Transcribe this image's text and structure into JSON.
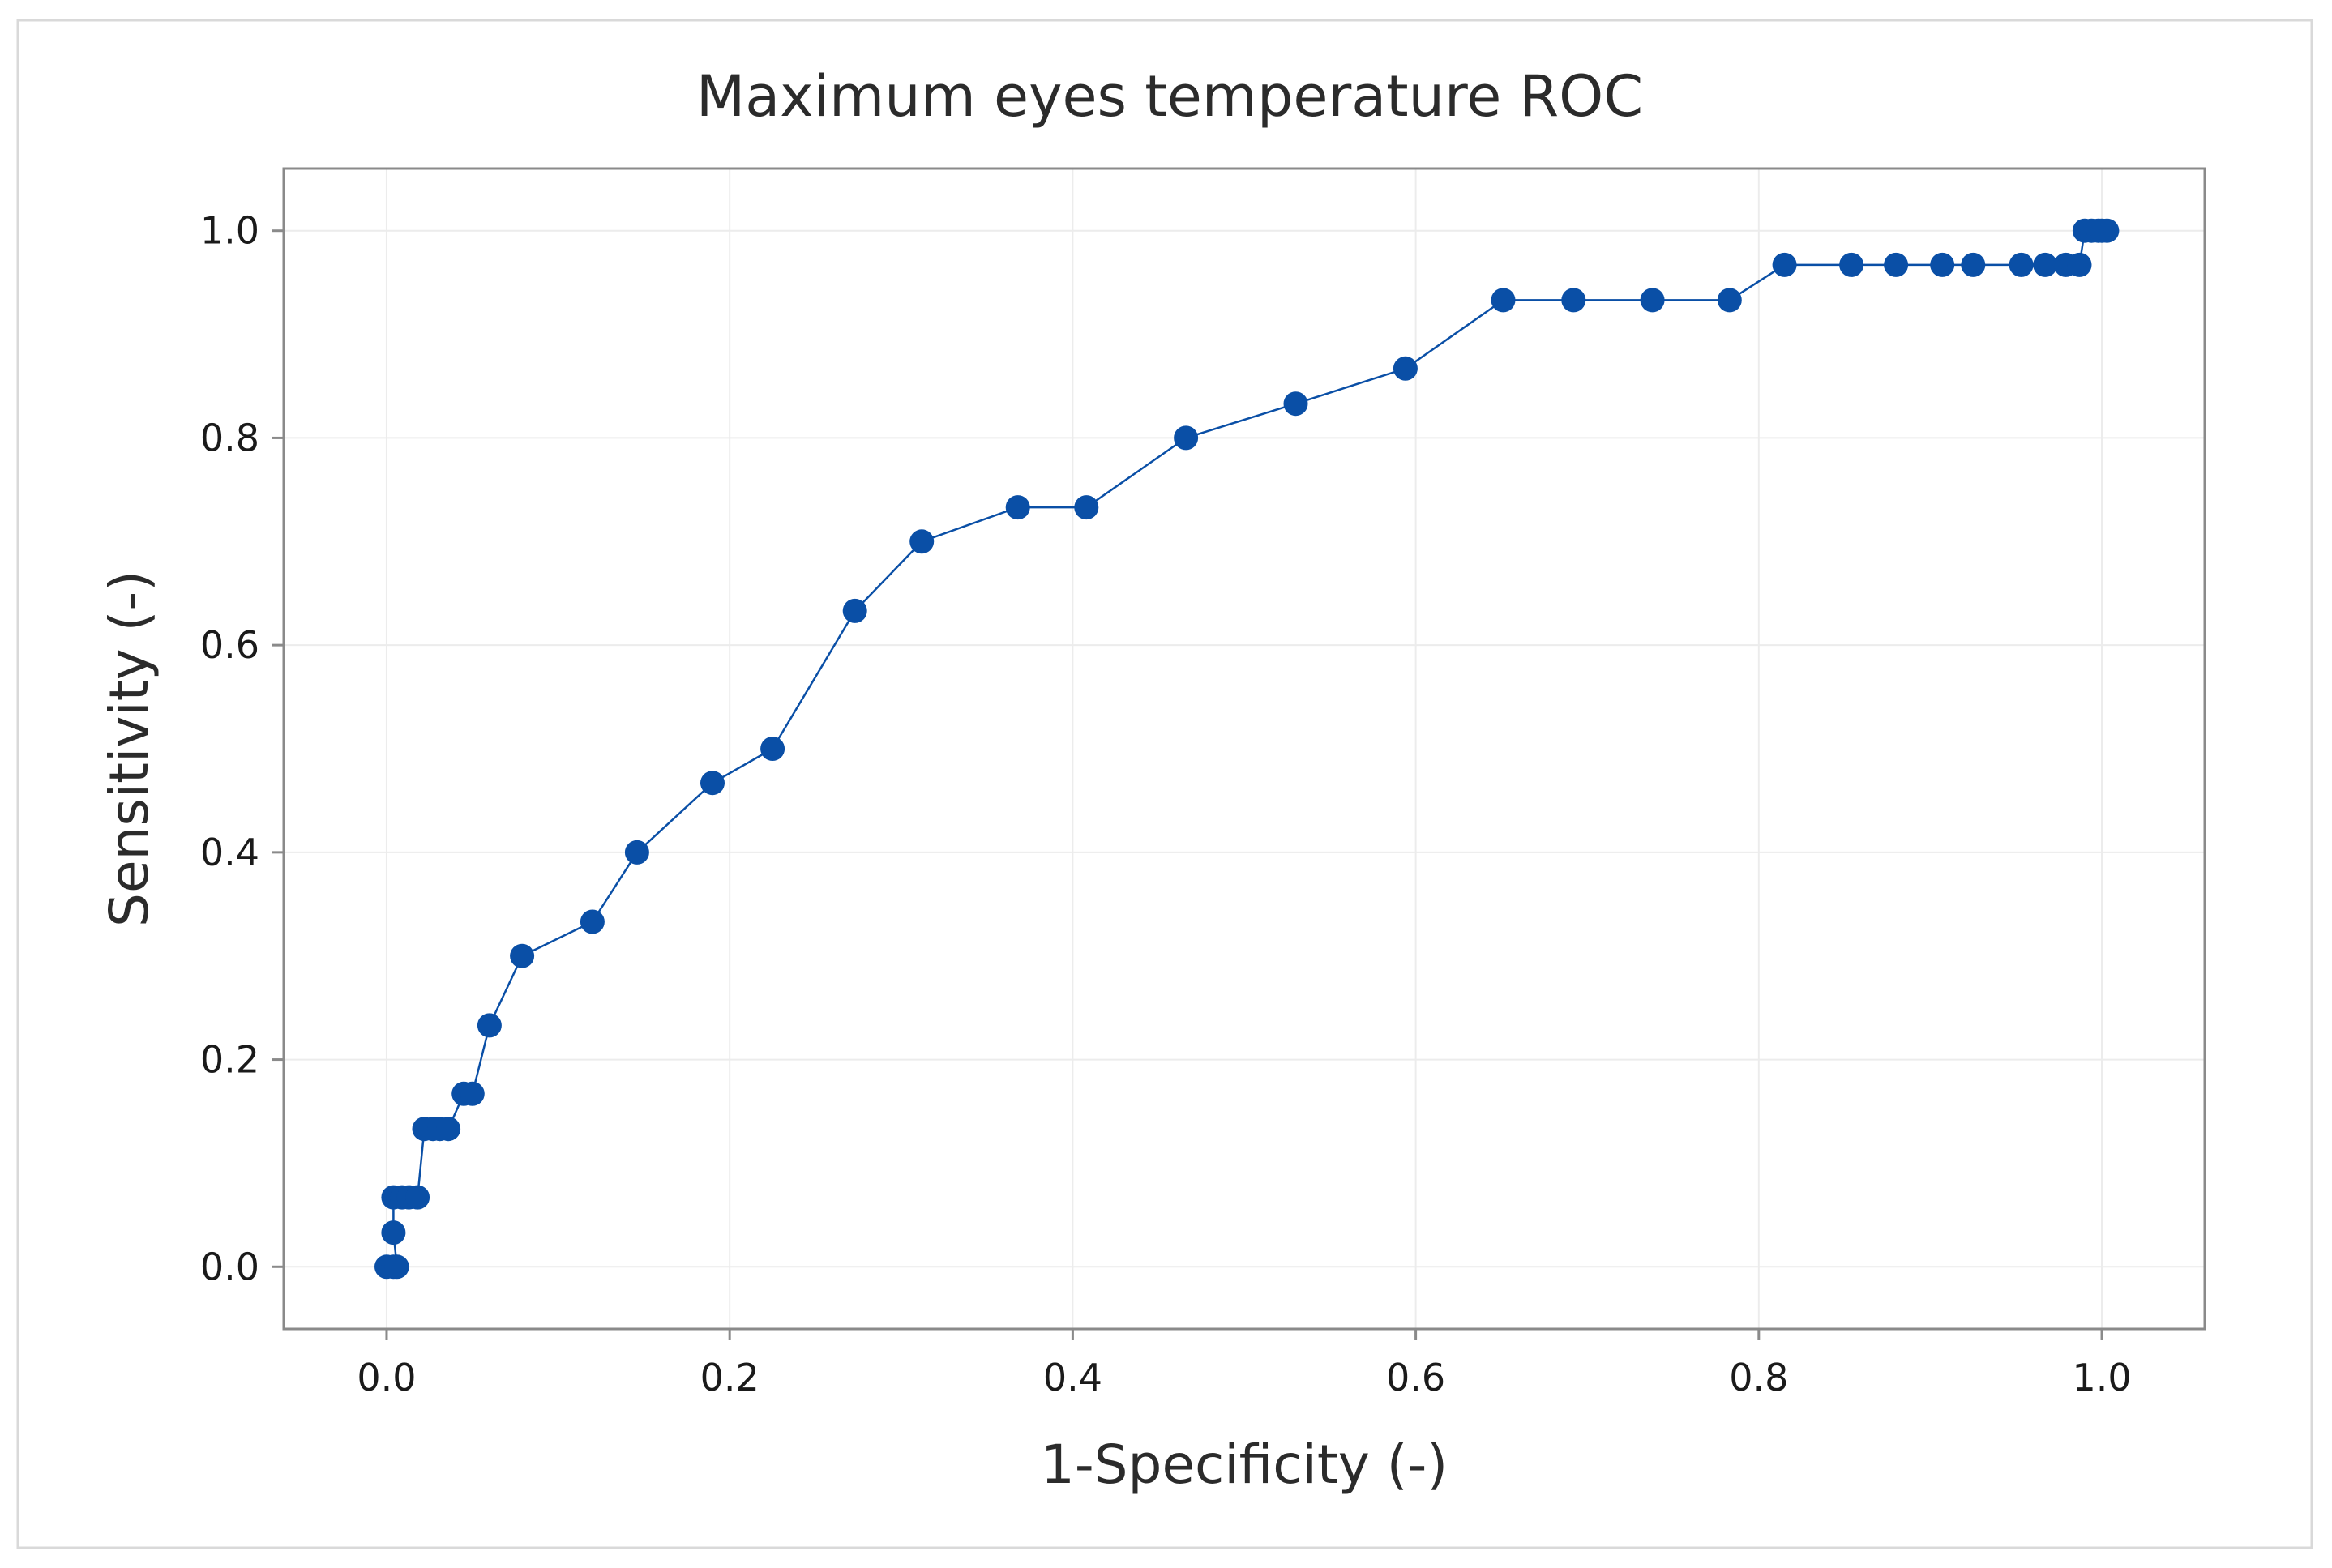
{
  "chart_data": {
    "type": "line",
    "title": "Maximum eyes temperature ROC",
    "xlabel": "1-Specificity (-)",
    "ylabel": "Sensitivity (-)",
    "xlim": [
      -0.06,
      1.06
    ],
    "ylim": [
      -0.06,
      1.06
    ],
    "x_ticks": [
      0.0,
      0.2,
      0.4,
      0.6,
      0.8,
      1.0
    ],
    "x_tick_labels": [
      "0.0",
      "0.2",
      "0.4",
      "0.6",
      "0.8",
      "1.0"
    ],
    "y_ticks": [
      0.0,
      0.2,
      0.4,
      0.6,
      0.8,
      1.0
    ],
    "y_tick_labels": [
      "0.0",
      "0.2",
      "0.4",
      "0.6",
      "0.8",
      "1.0"
    ],
    "grid": true,
    "legend": "none",
    "marker": "circle",
    "colors": {
      "series": "#0a4fa6",
      "grid": "#ececec",
      "frame": "#8a8a8a",
      "outer_border": "#d9d9d9"
    },
    "series": [
      {
        "x": [
          0.0,
          0.004,
          0.006,
          0.004,
          0.004,
          0.009,
          0.013,
          0.018,
          0.022,
          0.027,
          0.031,
          0.036,
          0.045,
          0.05,
          0.06,
          0.079,
          0.12,
          0.146,
          0.19,
          0.225,
          0.273,
          0.312,
          0.368,
          0.408,
          0.466,
          0.53,
          0.594,
          0.651,
          0.692,
          0.738,
          0.783,
          0.815,
          0.854,
          0.88,
          0.907,
          0.925,
          0.953,
          0.967,
          0.979,
          0.987,
          0.99,
          0.994,
          0.998,
          1.0,
          1.003
        ],
        "y": [
          0.0,
          0.0,
          0.0,
          0.033,
          0.067,
          0.067,
          0.067,
          0.067,
          0.133,
          0.133,
          0.133,
          0.133,
          0.167,
          0.167,
          0.233,
          0.3,
          0.333,
          0.4,
          0.467,
          0.5,
          0.633,
          0.7,
          0.733,
          0.733,
          0.8,
          0.833,
          0.867,
          0.933,
          0.933,
          0.933,
          0.933,
          0.967,
          0.967,
          0.967,
          0.967,
          0.967,
          0.967,
          0.967,
          0.967,
          0.967,
          1.0,
          1.0,
          1.0,
          1.0,
          1.0
        ]
      }
    ]
  }
}
